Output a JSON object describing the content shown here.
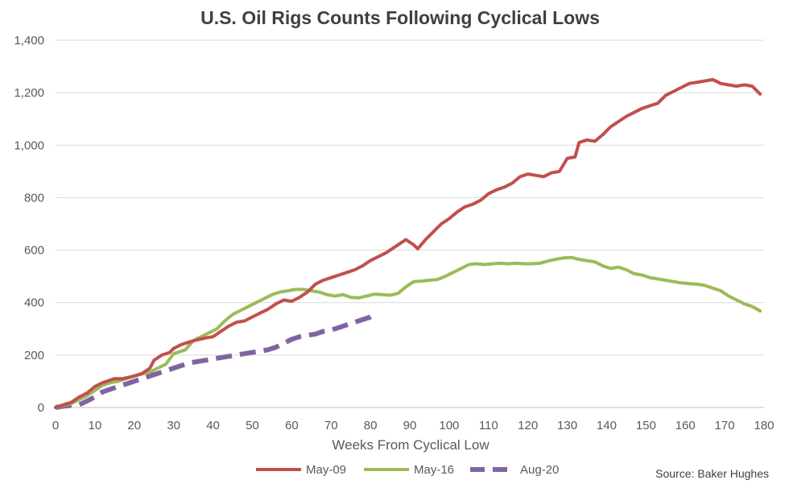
{
  "chart_data": {
    "type": "line",
    "title": "U.S. Oil Rigs Counts Following Cyclical Lows",
    "xlabel": "Weeks From Cyclical Low",
    "ylabel": "",
    "xlim": [
      0,
      180
    ],
    "ylim": [
      0,
      1400
    ],
    "x_ticks": [
      "0",
      "10",
      "20",
      "30",
      "40",
      "50",
      "60",
      "70",
      "80",
      "90",
      "100",
      "110",
      "120",
      "130",
      "140",
      "150",
      "160",
      "170",
      "180"
    ],
    "y_ticks": [
      "0",
      "200",
      "400",
      "600",
      "800",
      "1,000",
      "1,200",
      "1,400"
    ],
    "grid": "horizontal",
    "legend_position": "bottom",
    "source": "Source: Baker Hughes",
    "series": [
      {
        "name": "May-09",
        "color": "#C0504D",
        "dash": "solid",
        "points": [
          [
            0,
            0
          ],
          [
            2,
            10
          ],
          [
            4,
            20
          ],
          [
            6,
            40
          ],
          [
            8,
            55
          ],
          [
            10,
            80
          ],
          [
            12,
            95
          ],
          [
            14,
            105
          ],
          [
            15,
            110
          ],
          [
            17,
            110
          ],
          [
            20,
            120
          ],
          [
            22,
            130
          ],
          [
            24,
            150
          ],
          [
            25,
            180
          ],
          [
            27,
            200
          ],
          [
            29,
            210
          ],
          [
            30,
            225
          ],
          [
            32,
            240
          ],
          [
            34,
            250
          ],
          [
            36,
            258
          ],
          [
            38,
            265
          ],
          [
            40,
            270
          ],
          [
            42,
            290
          ],
          [
            44,
            310
          ],
          [
            46,
            325
          ],
          [
            48,
            330
          ],
          [
            50,
            345
          ],
          [
            52,
            360
          ],
          [
            54,
            375
          ],
          [
            56,
            395
          ],
          [
            58,
            410
          ],
          [
            60,
            405
          ],
          [
            62,
            420
          ],
          [
            64,
            440
          ],
          [
            66,
            470
          ],
          [
            68,
            485
          ],
          [
            70,
            495
          ],
          [
            72,
            505
          ],
          [
            74,
            515
          ],
          [
            76,
            525
          ],
          [
            78,
            540
          ],
          [
            80,
            560
          ],
          [
            82,
            575
          ],
          [
            84,
            590
          ],
          [
            86,
            610
          ],
          [
            88,
            630
          ],
          [
            89,
            640
          ],
          [
            91,
            620
          ],
          [
            92,
            605
          ],
          [
            94,
            640
          ],
          [
            96,
            670
          ],
          [
            98,
            700
          ],
          [
            100,
            720
          ],
          [
            102,
            745
          ],
          [
            104,
            765
          ],
          [
            106,
            775
          ],
          [
            108,
            790
          ],
          [
            110,
            815
          ],
          [
            112,
            830
          ],
          [
            114,
            840
          ],
          [
            116,
            855
          ],
          [
            118,
            880
          ],
          [
            120,
            890
          ],
          [
            122,
            885
          ],
          [
            124,
            880
          ],
          [
            126,
            895
          ],
          [
            128,
            900
          ],
          [
            130,
            950
          ],
          [
            132,
            955
          ],
          [
            133,
            1010
          ],
          [
            135,
            1020
          ],
          [
            137,
            1015
          ],
          [
            139,
            1040
          ],
          [
            141,
            1070
          ],
          [
            143,
            1090
          ],
          [
            145,
            1110
          ],
          [
            147,
            1125
          ],
          [
            149,
            1140
          ],
          [
            151,
            1150
          ],
          [
            153,
            1160
          ],
          [
            155,
            1190
          ],
          [
            157,
            1205
          ],
          [
            159,
            1220
          ],
          [
            161,
            1235
          ],
          [
            163,
            1240
          ],
          [
            165,
            1245
          ],
          [
            167,
            1250
          ],
          [
            169,
            1235
          ],
          [
            171,
            1230
          ],
          [
            173,
            1225
          ],
          [
            175,
            1230
          ],
          [
            177,
            1225
          ],
          [
            179,
            1195
          ]
        ]
      },
      {
        "name": "May-16",
        "color": "#9BBB59",
        "dash": "solid",
        "points": [
          [
            0,
            0
          ],
          [
            2,
            8
          ],
          [
            4,
            15
          ],
          [
            6,
            30
          ],
          [
            8,
            45
          ],
          [
            10,
            65
          ],
          [
            12,
            85
          ],
          [
            14,
            95
          ],
          [
            16,
            100
          ],
          [
            18,
            110
          ],
          [
            20,
            120
          ],
          [
            22,
            128
          ],
          [
            24,
            135
          ],
          [
            26,
            150
          ],
          [
            28,
            165
          ],
          [
            30,
            205
          ],
          [
            32,
            215
          ],
          [
            33,
            220
          ],
          [
            35,
            255
          ],
          [
            37,
            270
          ],
          [
            39,
            285
          ],
          [
            41,
            300
          ],
          [
            43,
            330
          ],
          [
            45,
            355
          ],
          [
            47,
            370
          ],
          [
            49,
            385
          ],
          [
            51,
            400
          ],
          [
            53,
            415
          ],
          [
            55,
            430
          ],
          [
            57,
            440
          ],
          [
            59,
            445
          ],
          [
            61,
            450
          ],
          [
            63,
            450
          ],
          [
            65,
            445
          ],
          [
            67,
            440
          ],
          [
            69,
            430
          ],
          [
            71,
            425
          ],
          [
            73,
            430
          ],
          [
            75,
            420
          ],
          [
            77,
            418
          ],
          [
            79,
            425
          ],
          [
            81,
            432
          ],
          [
            83,
            430
          ],
          [
            85,
            428
          ],
          [
            87,
            435
          ],
          [
            89,
            460
          ],
          [
            91,
            480
          ],
          [
            93,
            482
          ],
          [
            95,
            485
          ],
          [
            97,
            488
          ],
          [
            99,
            500
          ],
          [
            101,
            515
          ],
          [
            103,
            530
          ],
          [
            105,
            545
          ],
          [
            107,
            548
          ],
          [
            109,
            545
          ],
          [
            111,
            548
          ],
          [
            113,
            550
          ],
          [
            115,
            548
          ],
          [
            117,
            550
          ],
          [
            119,
            548
          ],
          [
            121,
            548
          ],
          [
            123,
            550
          ],
          [
            125,
            558
          ],
          [
            127,
            565
          ],
          [
            129,
            570
          ],
          [
            131,
            572
          ],
          [
            133,
            565
          ],
          [
            135,
            560
          ],
          [
            137,
            555
          ],
          [
            139,
            540
          ],
          [
            141,
            530
          ],
          [
            143,
            535
          ],
          [
            145,
            525
          ],
          [
            147,
            510
          ],
          [
            149,
            505
          ],
          [
            151,
            495
          ],
          [
            153,
            490
          ],
          [
            155,
            485
          ],
          [
            157,
            480
          ],
          [
            159,
            475
          ],
          [
            161,
            472
          ],
          [
            163,
            470
          ],
          [
            165,
            465
          ],
          [
            167,
            455
          ],
          [
            169,
            445
          ],
          [
            171,
            425
          ],
          [
            173,
            410
          ],
          [
            175,
            395
          ],
          [
            177,
            385
          ],
          [
            179,
            368
          ]
        ]
      },
      {
        "name": "Aug-20",
        "color": "#8064A2",
        "dash": "dashed",
        "points": [
          [
            0,
            0
          ],
          [
            2,
            5
          ],
          [
            4,
            8
          ],
          [
            6,
            10
          ],
          [
            8,
            25
          ],
          [
            10,
            40
          ],
          [
            12,
            60
          ],
          [
            14,
            70
          ],
          [
            16,
            80
          ],
          [
            18,
            90
          ],
          [
            20,
            100
          ],
          [
            22,
            110
          ],
          [
            24,
            120
          ],
          [
            26,
            130
          ],
          [
            28,
            140
          ],
          [
            30,
            150
          ],
          [
            32,
            160
          ],
          [
            34,
            170
          ],
          [
            36,
            175
          ],
          [
            38,
            180
          ],
          [
            40,
            185
          ],
          [
            42,
            190
          ],
          [
            44,
            195
          ],
          [
            46,
            200
          ],
          [
            48,
            205
          ],
          [
            50,
            210
          ],
          [
            52,
            215
          ],
          [
            54,
            220
          ],
          [
            56,
            230
          ],
          [
            58,
            245
          ],
          [
            60,
            260
          ],
          [
            62,
            270
          ],
          [
            64,
            275
          ],
          [
            66,
            280
          ],
          [
            68,
            290
          ],
          [
            70,
            295
          ],
          [
            72,
            305
          ],
          [
            74,
            315
          ],
          [
            76,
            325
          ],
          [
            78,
            335
          ],
          [
            80,
            345
          ],
          [
            81,
            355
          ]
        ]
      }
    ]
  }
}
